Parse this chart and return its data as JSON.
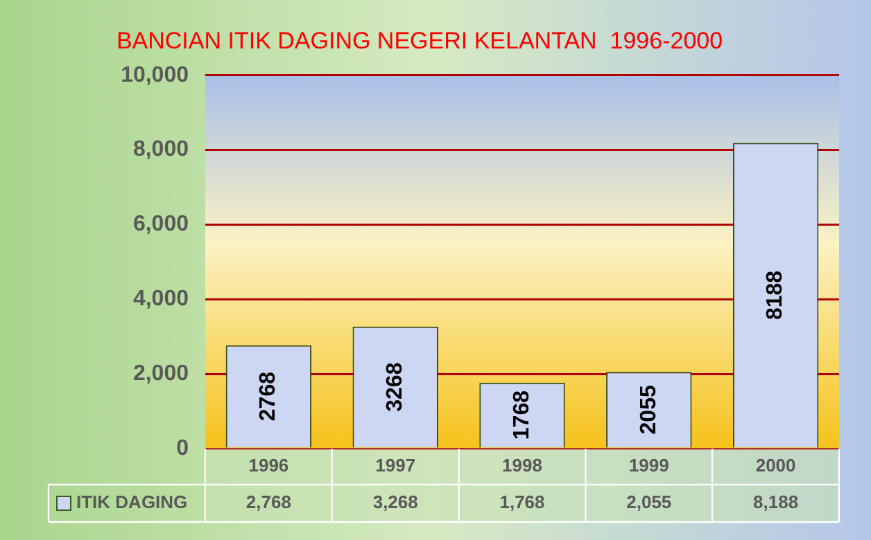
{
  "chart_data": {
    "type": "bar",
    "title": "BANCIAN ITIK DAGING NEGERI KELANTAN  1996-2000",
    "categories": [
      "1996",
      "1997",
      "1998",
      "1999",
      "2000"
    ],
    "series": [
      {
        "name": "ITIK DAGING",
        "color": "#cdd6f2",
        "values": [
          2768,
          3268,
          1768,
          2055,
          8188
        ],
        "value_labels": [
          "2,768",
          "3,268",
          "1,768",
          "2,055",
          "8,188"
        ]
      }
    ],
    "ylim": [
      0,
      10000
    ],
    "yticks": [
      0,
      {
        "value": 2000,
        "label": "2,000"
      },
      {
        "value": 4000,
        "label": "4,000"
      },
      {
        "value": 6000,
        "label": "6,000"
      },
      {
        "value": 8000,
        "label": "8,000"
      },
      {
        "value": 10000,
        "label": "10,000"
      }
    ],
    "annotations": [
      "2768",
      "3268",
      "1768",
      "2055",
      "8188"
    ],
    "grid": "y",
    "legend": "bottom"
  }
}
